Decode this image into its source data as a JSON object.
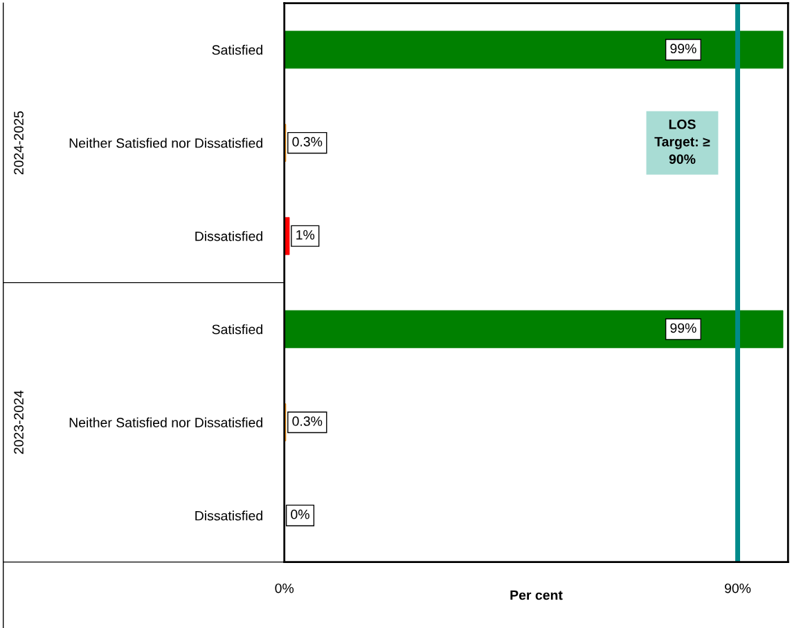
{
  "chart_data": {
    "type": "bar",
    "orientation": "horizontal",
    "categories": [
      "Satisfied",
      "Neither Satisfied nor Dissatisfied",
      "Dissatisfied",
      "Satisfied",
      "Neither Satisfied nor Dissatisfied",
      "Dissatisfied"
    ],
    "values": [
      99,
      0.3,
      1,
      99,
      0.3,
      0
    ],
    "colors": [
      "#008000",
      "#ff8c00",
      "#ff0000",
      "#008000",
      "#ff8c00",
      "#ff0000"
    ],
    "value_labels": [
      "99%",
      "0.3%",
      "1%",
      "99%",
      "0.3%",
      "0%"
    ],
    "xlabel": "Per cent",
    "xlim": [
      0,
      100
    ],
    "xticks": [
      {
        "value": 0,
        "label": "0%"
      },
      {
        "value": 90,
        "label": "90%"
      }
    ],
    "ref_lines": [
      {
        "axis": "x",
        "value": 90,
        "label": "LOS\nTarget: ≥\n90%",
        "color": "#008b8b"
      }
    ],
    "annotations": [
      "2024-2025",
      "2023-2024"
    ],
    "grid": false,
    "legend": false
  }
}
